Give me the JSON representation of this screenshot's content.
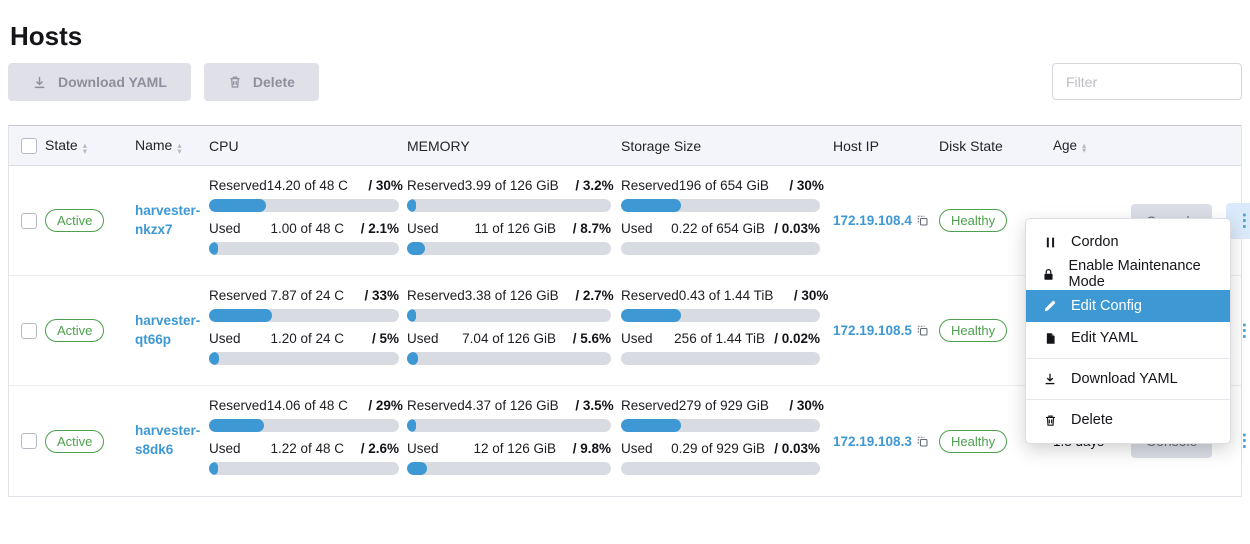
{
  "page": {
    "title": "Hosts"
  },
  "colors": {
    "accent": "#3d98d3",
    "success": "#4da04d",
    "track": "#d9dbe2"
  },
  "toolbar": {
    "download_yaml_label": "Download YAML",
    "delete_label": "Delete",
    "filter_placeholder": "Filter"
  },
  "table": {
    "headers": {
      "state": "State",
      "name": "Name",
      "cpu": "CPU",
      "memory": "MEMORY",
      "storage": "Storage Size",
      "host_ip": "Host IP",
      "disk_state": "Disk State",
      "age": "Age"
    },
    "reserved_label": "Reserved",
    "used_label": "Used",
    "console_label": "Console",
    "rows": [
      {
        "state": "Active",
        "name": "harvester-nkzx7",
        "cpu": {
          "reserved": {
            "text": "14.20 of 48 C",
            "pct_text": "/ 30%",
            "pct": 30
          },
          "used": {
            "text": "1.00 of 48 C",
            "pct_text": "/ 2.1%",
            "pct": 2.1
          }
        },
        "memory": {
          "reserved": {
            "text": "3.99 of 126 GiB",
            "pct_text": "/ 3.2%",
            "pct": 3.2
          },
          "used": {
            "text": "11 of 126 GiB",
            "pct_text": "/ 8.7%",
            "pct": 8.7
          }
        },
        "storage": {
          "reserved": {
            "text": "196 of 654 GiB",
            "pct_text": "/ 30%",
            "pct": 30
          },
          "used": {
            "text": "0.22 of 654 GiB",
            "pct_text": "/ 0.03%",
            "pct": 0.03
          }
        },
        "host_ip": "172.19.108.4",
        "disk_state": "Healthy",
        "age": ""
      },
      {
        "state": "Active",
        "name": "harvester-qt66p",
        "cpu": {
          "reserved": {
            "text": "7.87 of 24 C",
            "pct_text": "/ 33%",
            "pct": 33
          },
          "used": {
            "text": "1.20 of 24 C",
            "pct_text": "/ 5%",
            "pct": 5
          }
        },
        "memory": {
          "reserved": {
            "text": "3.38 of 126 GiB",
            "pct_text": "/ 2.7%",
            "pct": 2.7
          },
          "used": {
            "text": "7.04 of 126 GiB",
            "pct_text": "/ 5.6%",
            "pct": 5.6
          }
        },
        "storage": {
          "reserved": {
            "text": "0.43 of 1.44 TiB",
            "pct_text": "/ 30%",
            "pct": 30
          },
          "used": {
            "text": "256 of 1.44 TiB",
            "pct_text": "/ 0.02%",
            "pct": 0.02
          }
        },
        "host_ip": "172.19.108.5",
        "disk_state": "Healthy",
        "age": ""
      },
      {
        "state": "Active",
        "name": "harvester-s8dk6",
        "cpu": {
          "reserved": {
            "text": "14.06 of 48 C",
            "pct_text": "/ 29%",
            "pct": 29
          },
          "used": {
            "text": "1.22 of 48 C",
            "pct_text": "/ 2.6%",
            "pct": 2.6
          }
        },
        "memory": {
          "reserved": {
            "text": "4.37 of 126 GiB",
            "pct_text": "/ 3.5%",
            "pct": 3.5
          },
          "used": {
            "text": "12 of 126 GiB",
            "pct_text": "/ 9.8%",
            "pct": 9.8
          }
        },
        "storage": {
          "reserved": {
            "text": "279 of 929 GiB",
            "pct_text": "/ 30%",
            "pct": 30
          },
          "used": {
            "text": "0.29 of 929 GiB",
            "pct_text": "/ 0.03%",
            "pct": 0.03
          }
        },
        "host_ip": "172.19.108.3",
        "disk_state": "Healthy",
        "age": "1.8 days"
      }
    ]
  },
  "context_menu": {
    "items": [
      {
        "icon": "pause-icon",
        "label": "Cordon"
      },
      {
        "icon": "lock-icon",
        "label": "Enable Maintenance Mode"
      },
      {
        "icon": "pencil-icon",
        "label": "Edit Config",
        "active": true
      },
      {
        "icon": "file-icon",
        "label": "Edit YAML"
      },
      {
        "icon": "download-icon",
        "label": "Download YAML"
      },
      {
        "icon": "trash-icon",
        "label": "Delete"
      }
    ]
  }
}
